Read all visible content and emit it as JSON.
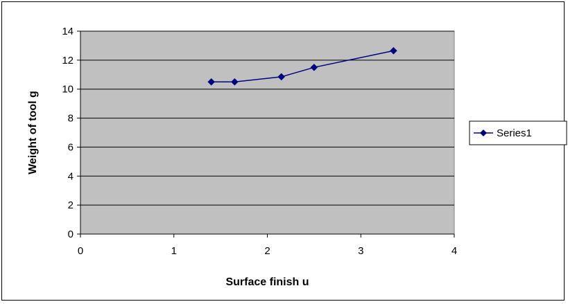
{
  "chart_data": {
    "type": "line",
    "title": "",
    "xlabel": "Surface finish u",
    "ylabel": "Weight of tool g",
    "xlim": [
      0,
      4
    ],
    "ylim": [
      0,
      14
    ],
    "x_ticks": [
      "0",
      "1",
      "2",
      "3",
      "4"
    ],
    "y_ticks": [
      "0",
      "2",
      "4",
      "6",
      "8",
      "10",
      "12",
      "14"
    ],
    "grid": "horizontal",
    "legend_position": "right",
    "plot_background": "#c0c0c0",
    "series": [
      {
        "name": "Series1",
        "color": "#000080",
        "marker": "diamond",
        "x": [
          1.4,
          1.65,
          2.15,
          2.5,
          3.35
        ],
        "y": [
          10.5,
          10.5,
          10.85,
          11.5,
          12.65
        ]
      }
    ]
  }
}
